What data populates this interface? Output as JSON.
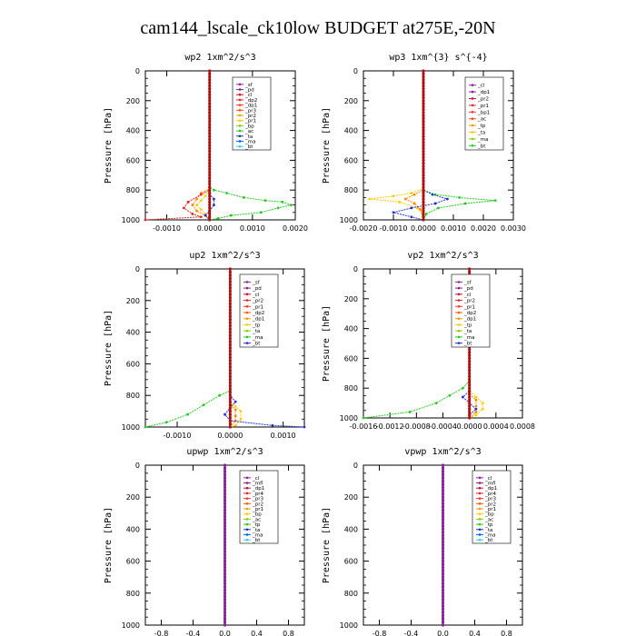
{
  "title": "cam144_lscale_ck10low  BUDGET at275E,-20N",
  "chart_data": [
    {
      "type": "line",
      "title": "wp2   1xm^2/s^3",
      "ylabel": "Pressure [hPa]",
      "xlim": [
        -0.0015,
        0.002
      ],
      "ylim": [
        1000,
        0
      ],
      "xticks": [
        -0.001,
        0.0,
        0.001,
        0.002
      ],
      "xticklabels": [
        "-0.0010",
        "0.0000",
        "0.0010",
        "0.0020"
      ],
      "yticks": [
        0,
        200,
        400,
        600,
        800,
        1000
      ],
      "legend": [
        "_sf",
        "_pd",
        "_cl",
        "_dp2",
        "_dp1",
        "_pr3",
        "_pr2",
        "_pr1",
        "_bp",
        "_ac",
        "_ta",
        "_ma",
        "_bt"
      ],
      "series": [
        {
          "name": "_ac",
          "color": "#22cc22",
          "points": [
            [
              0,
              0
            ],
            [
              0,
              780
            ],
            [
              0.0001,
              800
            ],
            [
              0.0004,
              820
            ],
            [
              0.0008,
              850
            ],
            [
              0.0013,
              870
            ],
            [
              0.0017,
              880
            ],
            [
              0.0019,
              900
            ],
            [
              0.0016,
              920
            ],
            [
              0.0012,
              950
            ],
            [
              0.0005,
              970
            ],
            [
              0.0002,
              990
            ],
            [
              0,
              1000
            ]
          ]
        },
        {
          "name": "_pr1",
          "color": "#ffcc00",
          "points": [
            [
              0,
              0
            ],
            [
              0,
              800
            ],
            [
              -0.0001,
              840
            ],
            [
              -0.0002,
              870
            ],
            [
              -0.0003,
              900
            ],
            [
              -0.0002,
              930
            ],
            [
              -0.0001,
              960
            ],
            [
              0,
              1000
            ]
          ]
        },
        {
          "name": "_pr2",
          "color": "#ff8800",
          "points": [
            [
              0,
              0
            ],
            [
              0,
              790
            ],
            [
              -0.0002,
              820
            ],
            [
              -0.0003,
              860
            ],
            [
              -0.0004,
              900
            ],
            [
              -0.0003,
              940
            ],
            [
              -0.0001,
              970
            ],
            [
              0,
              1000
            ]
          ]
        },
        {
          "name": "_dp1",
          "color": "#ee2222",
          "points": [
            [
              0,
              0
            ],
            [
              0,
              800
            ],
            [
              -0.0002,
              830
            ],
            [
              -0.0005,
              880
            ],
            [
              -0.0006,
              920
            ],
            [
              -0.0004,
              960
            ],
            [
              -0.0002,
              980
            ],
            [
              -0.0015,
              1000
            ]
          ]
        },
        {
          "name": "_bp",
          "color": "#2233cc",
          "points": [
            [
              0,
              0
            ],
            [
              0,
              830
            ],
            [
              0.0001,
              860
            ],
            [
              0.0001,
              900
            ],
            [
              0,
              940
            ],
            [
              -0.0001,
              970
            ],
            [
              0,
              1000
            ]
          ]
        }
      ]
    },
    {
      "type": "line",
      "title": "wp3   1xm^{3} s^{-4}",
      "ylabel": "Pressure [hPa]",
      "xlim": [
        -0.002,
        0.003
      ],
      "ylim": [
        1000,
        0
      ],
      "xticks": [
        -0.002,
        -0.001,
        0.0,
        0.001,
        0.002,
        0.003
      ],
      "xticklabels": [
        "-0.0020",
        "-0.0010",
        "0.0000",
        "0.0010",
        "0.0020",
        "0.0030"
      ],
      "yticks": [
        0,
        200,
        400,
        600,
        800,
        1000
      ],
      "legend": [
        "_cl",
        "_dp1",
        "_pr2",
        "_pr1",
        "_bp1",
        "_ac",
        "_tp",
        "_ta",
        "_ma",
        "_bt"
      ],
      "series": [
        {
          "name": "_ac",
          "color": "#22cc22",
          "points": [
            [
              0,
              0
            ],
            [
              0,
              800
            ],
            [
              0.0004,
              830
            ],
            [
              0.0012,
              850
            ],
            [
              0.0024,
              870
            ],
            [
              0.0014,
              890
            ],
            [
              0.0005,
              920
            ],
            [
              0.0001,
              960
            ],
            [
              0,
              1000
            ]
          ]
        },
        {
          "name": "_pr1",
          "color": "#ffcc00",
          "points": [
            [
              0,
              0
            ],
            [
              0,
              790
            ],
            [
              -0.0004,
              820
            ],
            [
              -0.001,
              840
            ],
            [
              -0.0018,
              860
            ],
            [
              -0.0008,
              880
            ],
            [
              -0.0002,
              920
            ],
            [
              0,
              960
            ],
            [
              0,
              1000
            ]
          ]
        },
        {
          "name": "_pr2",
          "color": "#ff8800",
          "points": [
            [
              0,
              0
            ],
            [
              0,
              800
            ],
            [
              -0.0003,
              830
            ],
            [
              -0.0006,
              860
            ],
            [
              -0.0003,
              890
            ],
            [
              -0.0001,
              930
            ],
            [
              0,
              1000
            ]
          ]
        },
        {
          "name": "_bp1",
          "color": "#2233cc",
          "points": [
            [
              0,
              0
            ],
            [
              0,
              800
            ],
            [
              0.0003,
              830
            ],
            [
              0.0008,
              860
            ],
            [
              0.0004,
              890
            ],
            [
              -0.0004,
              920
            ],
            [
              -0.001,
              950
            ],
            [
              -0.0004,
              980
            ],
            [
              0,
              1000
            ]
          ]
        }
      ]
    },
    {
      "type": "line",
      "title": "up2   1xm^2/s^3",
      "ylabel": "Pressure [hPa]",
      "xlim": [
        -0.0016,
        0.0014
      ],
      "ylim": [
        1000,
        0
      ],
      "xticks": [
        -0.001,
        0.0,
        0.001
      ],
      "xticklabels": [
        "-0.0010",
        "0.0000",
        "0.0010"
      ],
      "yticks": [
        0,
        200,
        400,
        600,
        800,
        1000
      ],
      "legend": [
        "_sf",
        "_pd",
        "_cl",
        "_pr2",
        "_pr1",
        "_dp2",
        "_dp1",
        "_tp",
        "_ta",
        "_ma",
        "_bt"
      ],
      "series": [
        {
          "name": "_dp1",
          "color": "#22cc22",
          "points": [
            [
              0,
              0
            ],
            [
              0,
              770
            ],
            [
              -0.0002,
              800
            ],
            [
              -0.0005,
              860
            ],
            [
              -0.0008,
              920
            ],
            [
              -0.0012,
              970
            ],
            [
              -0.0016,
              1000
            ]
          ]
        },
        {
          "name": "_pr1",
          "color": "#ffcc00",
          "points": [
            [
              0,
              0
            ],
            [
              0,
              840
            ],
            [
              0.0001,
              870
            ],
            [
              0.0002,
              900
            ],
            [
              0.0002,
              950
            ],
            [
              0.0001,
              990
            ],
            [
              0,
              1000
            ]
          ]
        },
        {
          "name": "_pr2",
          "color": "#ff8800",
          "points": [
            [
              0,
              0
            ],
            [
              0,
              860
            ],
            [
              0.0001,
              890
            ],
            [
              0.0001,
              930
            ],
            [
              0.0001,
              960
            ],
            [
              0,
              1000
            ]
          ]
        },
        {
          "name": "_tp",
          "color": "#2233cc",
          "points": [
            [
              0,
              0
            ],
            [
              0,
              800
            ],
            [
              0.0001,
              840
            ],
            [
              0,
              880
            ],
            [
              -0.0001,
              920
            ],
            [
              0,
              960
            ],
            [
              0.0008,
              990
            ],
            [
              0.0014,
              1000
            ]
          ]
        }
      ]
    },
    {
      "type": "line",
      "title": "vp2   1xm^2/s^3",
      "ylabel": "Pressure [hPa]",
      "xlim": [
        -0.0016,
        0.0008
      ],
      "ylim": [
        1000,
        0
      ],
      "xticks": [
        -0.0016,
        -0.0012,
        -0.0008,
        -0.0004,
        0.0,
        0.0004,
        0.0008
      ],
      "xticklabels": [
        "-0.0016",
        "-0.0012",
        "-0.0008",
        "-0.0004",
        "0.0000",
        "0.0004",
        "0.0008"
      ],
      "yticks": [
        0,
        200,
        400,
        600,
        800,
        1000
      ],
      "legend": [
        "_sf",
        "_pd",
        "_cl",
        "_pr2",
        "_pr1",
        "_dp2",
        "_dp1",
        "_tp",
        "_ta",
        "_ma",
        "_bt"
      ],
      "series": [
        {
          "name": "_dp1",
          "color": "#22cc22",
          "points": [
            [
              0,
              0
            ],
            [
              0,
              750
            ],
            [
              -0.0001,
              800
            ],
            [
              -0.0003,
              850
            ],
            [
              -0.0005,
              900
            ],
            [
              -0.0009,
              960
            ],
            [
              -0.0016,
              1000
            ]
          ]
        },
        {
          "name": "_pr1",
          "color": "#ffcc00",
          "points": [
            [
              0,
              0
            ],
            [
              0,
              820
            ],
            [
              0.0001,
              860
            ],
            [
              0.0002,
              900
            ],
            [
              0.0002,
              940
            ],
            [
              0.0001,
              980
            ],
            [
              0,
              1000
            ]
          ]
        },
        {
          "name": "_pr2",
          "color": "#ff8800",
          "points": [
            [
              0,
              0
            ],
            [
              0,
              840
            ],
            [
              0.0001,
              880
            ],
            [
              0.0001,
              920
            ],
            [
              0.0001,
              960
            ],
            [
              0,
              1000
            ]
          ]
        },
        {
          "name": "_tp",
          "color": "#2233cc",
          "points": [
            [
              0,
              0
            ],
            [
              0,
              820
            ],
            [
              -0.0001,
              860
            ],
            [
              0,
              900
            ],
            [
              0.0001,
              940
            ],
            [
              0,
              980
            ],
            [
              0,
              1000
            ]
          ]
        }
      ]
    },
    {
      "type": "line",
      "title": "upwp   1xm^2/s^3",
      "ylabel": "Pressure [hPa]",
      "xlim": [
        -1.0,
        1.0
      ],
      "ylim": [
        1000,
        0
      ],
      "xticks": [
        -0.8,
        -0.4,
        0.0,
        0.4,
        0.8
      ],
      "xticklabels": [
        "-0.8",
        "-0.4",
        "0.0",
        "0.4",
        "0.8"
      ],
      "yticks": [
        0,
        200,
        400,
        600,
        800,
        1000
      ],
      "legend": [
        "_cl",
        "_mfl",
        "_dp1",
        "_pr4",
        "_pr3",
        "_pr2",
        "_pr1",
        "_bp",
        "_ac",
        "_tp",
        "_ta",
        "_ma",
        "_bt"
      ],
      "series": [
        {
          "name": "_bt",
          "color": "#9922aa",
          "points": [
            [
              0,
              0
            ],
            [
              0,
              1000
            ]
          ]
        }
      ]
    },
    {
      "type": "line",
      "title": "vpwp   1xm^2/s^3",
      "ylabel": "Pressure [hPa]",
      "xlim": [
        -1.0,
        1.0
      ],
      "ylim": [
        1000,
        0
      ],
      "xticks": [
        -0.8,
        -0.4,
        0.0,
        0.4,
        0.8
      ],
      "xticklabels": [
        "-0.8",
        "-0.4",
        "0.0",
        "0.4",
        "0.8"
      ],
      "yticks": [
        0,
        200,
        400,
        600,
        800,
        1000
      ],
      "legend": [
        "_cl",
        "_mfl",
        "_dp1",
        "_pr4",
        "_pr3",
        "_pr2",
        "_pr1",
        "_bp",
        "_ac",
        "_tp",
        "_ta",
        "_ma",
        "_bt"
      ],
      "series": [
        {
          "name": "_bt",
          "color": "#9922aa",
          "points": [
            [
              0,
              0
            ],
            [
              0,
              1000
            ]
          ]
        }
      ]
    }
  ]
}
